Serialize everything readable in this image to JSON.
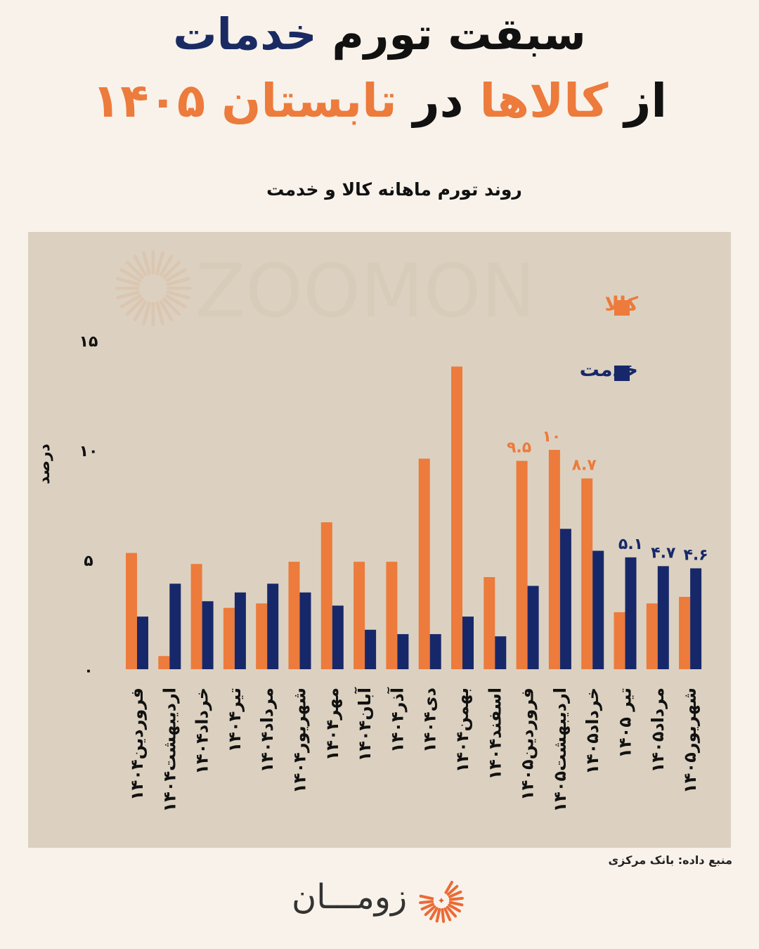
{
  "header": {
    "title_line1_part1": "سبقت تورم",
    "title_line1_part2": "خدمات",
    "title_line2_part1": "از",
    "title_line2_part2": "کالاها",
    "title_line2_part3": "در",
    "title_line2_part4": "تابستان ۱۴۰۵"
  },
  "watermark": "ZOOMON",
  "colors": {
    "goods": "#ec7b3c",
    "services": "#17286a",
    "background": "#f8f2ea",
    "plot_bg": "#dcd1c0"
  },
  "chart_data": {
    "type": "bar",
    "title": "روند تورم ماهانه کالا و خدمت",
    "ylabel": "درصد",
    "ylim": [
      0,
      15
    ],
    "yticks": [
      {
        "value": 0,
        "label": "۰"
      },
      {
        "value": 5,
        "label": "۵"
      },
      {
        "value": 10,
        "label": "۱۰"
      },
      {
        "value": 15,
        "label": "۱۵"
      }
    ],
    "legend_position": "top-right",
    "categories": [
      "فروردین۱۴۰۴",
      "اردیبهشت۱۴۰۴",
      "خرداد۱۴۰۴",
      "تیر۱۴۰۴",
      "مرداد۱۴۰۴",
      "شهریور۱۴۰۴",
      "مهر۱۴۰۴",
      "آبان۱۴۰۴",
      "آذر۱۴۰۴",
      "دی۱۴۰۴",
      "بهمن۱۴۰۴",
      "اسفند۱۴۰۴",
      "فروردین۱۴۰۵",
      "اردیبهشت۱۴۰۵",
      "خرداد۱۴۰۵",
      "تیر ۱۴۰۵",
      "مرداد۱۴۰۵",
      "شهریور۱۴۰۵"
    ],
    "series": [
      {
        "name": "کالا",
        "color": "#ec7b3c",
        "values": [
          5.3,
          0.6,
          4.8,
          2.8,
          3.0,
          4.9,
          6.7,
          4.9,
          4.9,
          9.6,
          13.8,
          4.2,
          9.5,
          10.0,
          8.7,
          2.6,
          3.0,
          3.3
        ],
        "data_labels": {
          "12": "۹.۵",
          "13": "۱۰",
          "14": "۸.۷"
        }
      },
      {
        "name": "خدمت",
        "color": "#17286a",
        "values": [
          2.4,
          3.9,
          3.1,
          3.5,
          3.9,
          3.5,
          2.9,
          1.8,
          1.6,
          1.6,
          2.4,
          1.5,
          3.8,
          6.4,
          5.4,
          5.1,
          4.7,
          4.6
        ],
        "data_labels": {
          "15": "۵.۱",
          "16": "۴.۷",
          "17": "۴.۶"
        }
      }
    ]
  },
  "source_label": "منبع داده: بانک مرکزی",
  "brand": {
    "name": "زومـــان"
  }
}
